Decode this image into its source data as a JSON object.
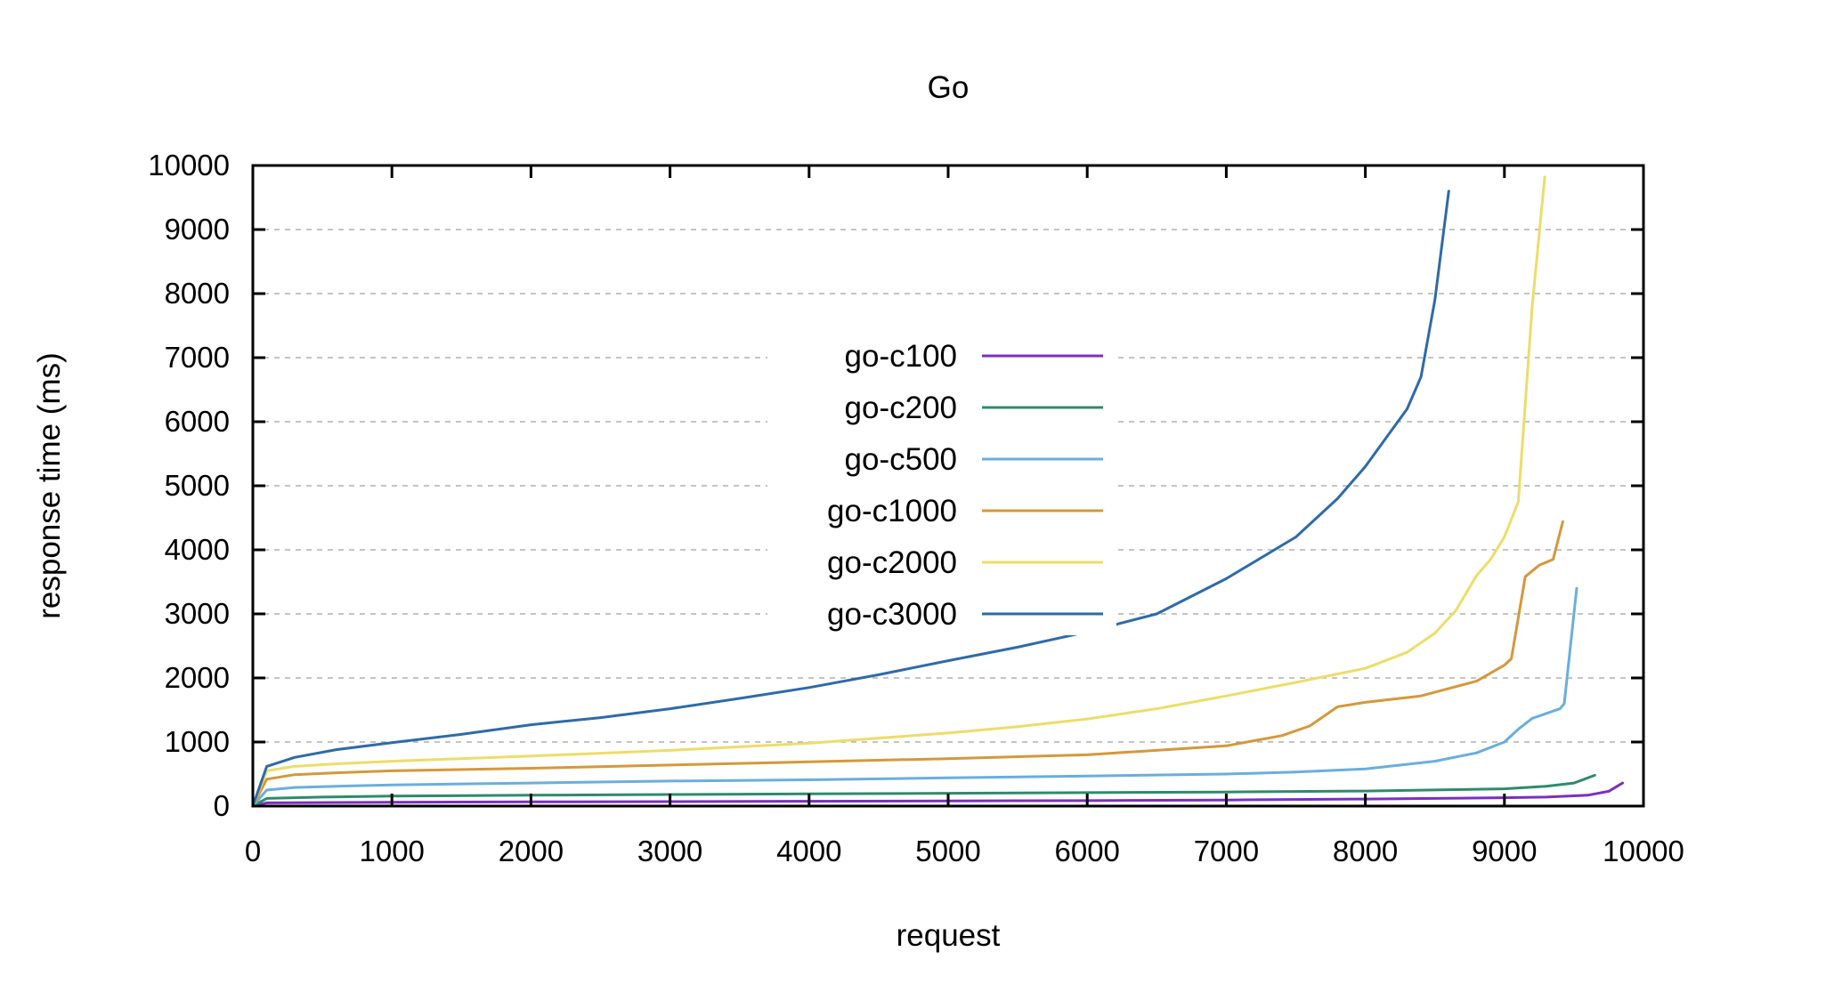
{
  "chart_data": {
    "type": "line",
    "title": "Go",
    "xlabel": "request",
    "ylabel": "response time (ms)",
    "xlim": [
      0,
      10000
    ],
    "ylim": [
      0,
      10000
    ],
    "xticks": [
      0,
      1000,
      2000,
      3000,
      4000,
      5000,
      6000,
      7000,
      8000,
      9000,
      10000
    ],
    "yticks": [
      0,
      1000,
      2000,
      3000,
      4000,
      5000,
      6000,
      7000,
      8000,
      9000,
      10000
    ],
    "grid": "horizontal dashed",
    "legend_position": "center",
    "series": [
      {
        "name": "go-c100",
        "color": "#7b2fbf",
        "x": [
          0,
          100,
          1000,
          2000,
          3000,
          4000,
          5000,
          6000,
          7000,
          8000,
          9000,
          9300,
          9600,
          9750,
          9850
        ],
        "y": [
          0,
          50,
          60,
          65,
          70,
          75,
          80,
          85,
          95,
          110,
          130,
          140,
          170,
          230,
          360
        ]
      },
      {
        "name": "go-c200",
        "color": "#2e8b6a",
        "x": [
          0,
          100,
          500,
          1000,
          2000,
          3000,
          4000,
          5000,
          6000,
          7000,
          8000,
          9000,
          9300,
          9500,
          9650
        ],
        "y": [
          0,
          120,
          140,
          155,
          170,
          180,
          190,
          200,
          210,
          220,
          235,
          270,
          310,
          360,
          480
        ]
      },
      {
        "name": "go-c500",
        "color": "#6aaedc",
        "x": [
          0,
          100,
          300,
          600,
          1000,
          2000,
          3000,
          4000,
          5000,
          6000,
          7000,
          7500,
          8000,
          8500,
          8800,
          9000,
          9100,
          9200,
          9400,
          9430,
          9520
        ],
        "y": [
          0,
          250,
          290,
          310,
          330,
          360,
          390,
          410,
          440,
          470,
          500,
          530,
          580,
          700,
          830,
          1000,
          1200,
          1370,
          1520,
          1600,
          3400
        ]
      },
      {
        "name": "go-c1000",
        "color": "#d4983c",
        "x": [
          0,
          100,
          300,
          600,
          1000,
          2000,
          3000,
          4000,
          5000,
          6000,
          7000,
          7400,
          7600,
          7800,
          8000,
          8400,
          8800,
          9000,
          9050,
          9150,
          9250,
          9350,
          9420
        ],
        "y": [
          0,
          420,
          490,
          520,
          550,
          590,
          640,
          690,
          740,
          800,
          940,
          1100,
          1250,
          1550,
          1620,
          1720,
          1950,
          2200,
          2300,
          3580,
          3760,
          3850,
          4440
        ]
      },
      {
        "name": "go-c2000",
        "color": "#ecdd6a",
        "x": [
          0,
          100,
          300,
          600,
          1000,
          2000,
          3000,
          4000,
          5000,
          5500,
          6000,
          6500,
          7000,
          7500,
          8000,
          8300,
          8500,
          8650,
          8800,
          8900,
          9000,
          9100,
          9200,
          9290
        ],
        "y": [
          0,
          550,
          620,
          660,
          700,
          780,
          870,
          980,
          1140,
          1240,
          1360,
          1520,
          1720,
          1930,
          2150,
          2400,
          2700,
          3050,
          3600,
          3850,
          4200,
          4750,
          7800,
          9820
        ]
      },
      {
        "name": "go-c3000",
        "color": "#2f6aa8",
        "x": [
          0,
          100,
          300,
          600,
          1000,
          1500,
          2000,
          2500,
          3000,
          3500,
          4000,
          4500,
          5000,
          5500,
          6000,
          6500,
          7000,
          7500,
          7800,
          8000,
          8200,
          8300,
          8400,
          8500,
          8600
        ],
        "y": [
          0,
          620,
          760,
          880,
          990,
          1120,
          1270,
          1380,
          1520,
          1680,
          1850,
          2050,
          2270,
          2480,
          2720,
          3000,
          3550,
          4200,
          4800,
          5300,
          5900,
          6200,
          6700,
          7900,
          9600
        ]
      }
    ]
  }
}
